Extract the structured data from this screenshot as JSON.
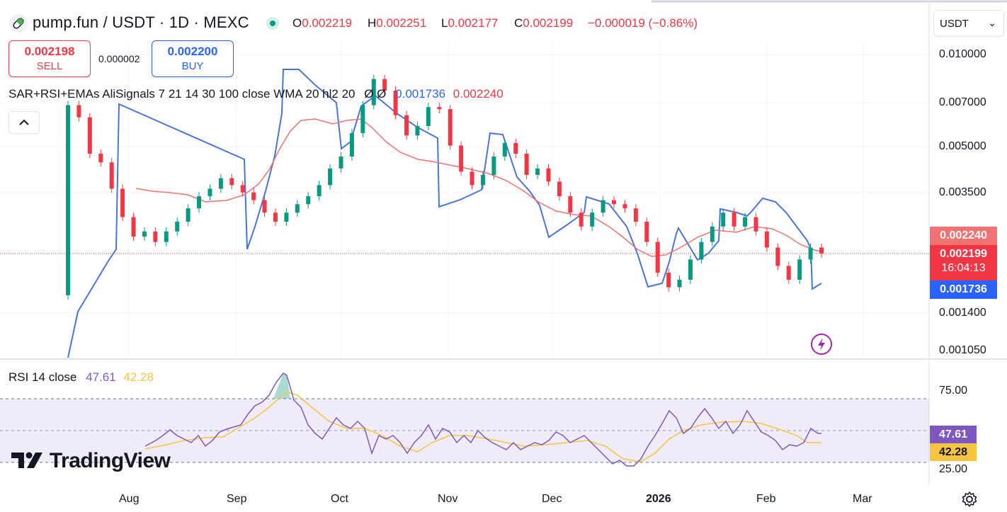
{
  "header": {
    "symbol": "pump.fun / USDT · 1D · MEXC",
    "ohlc": [
      {
        "key": "O",
        "value": "0.002219"
      },
      {
        "key": "H",
        "value": "0.002251"
      },
      {
        "key": "L",
        "value": "0.002177"
      },
      {
        "key": "C",
        "value": "0.002199"
      }
    ],
    "change": "−0.000019 (−0.86%)",
    "currency": "USDT"
  },
  "trade": {
    "sell_price": "0.002198",
    "sell_label": "SELL",
    "spread": "0.000002",
    "buy_price": "0.002200",
    "buy_label": "BUY"
  },
  "indicator": {
    "title": "SAR+RSI+EMAs AliSignals 7 21 14 30 100 close WMA 20 hl2 20",
    "flags": "Ø Ø",
    "value1": "0.001736",
    "value2": "0.002240"
  },
  "price_axis": {
    "ticks": [
      "0.010000",
      "0.007000",
      "0.005000",
      "0.003500",
      "0.001400",
      "0.001050"
    ],
    "labels": {
      "ema": "0.002240",
      "last_price": "0.002199",
      "countdown": "16:04:13",
      "sar": "0.001736"
    }
  },
  "rsi": {
    "title": "RSI 14 close",
    "value": "47.61",
    "ma_value": "42.28",
    "ticks": [
      "75.00",
      "25.00"
    ]
  },
  "time_axis": {
    "ticks": [
      "Aug",
      "Sep",
      "Oct",
      "Nov",
      "Dec",
      "2026",
      "Feb",
      "Mar"
    ]
  },
  "branding": "TradingView",
  "colors": {
    "up": "#089981",
    "down": "#f23645",
    "sar": "#4a74d9",
    "ema": "#f07272",
    "rsi": "#7e57c2",
    "rsi_ma": "#f5c542"
  },
  "chart_data": {
    "type": "candlestick",
    "series": [
      {
        "name": "pump.fun / USDT",
        "values": [
          [
            0.0016,
            0.0068
          ],
          [
            0.0068,
            0.0062
          ],
          [
            0.0062,
            0.0047
          ],
          [
            0.0047,
            0.0044
          ],
          [
            0.0044,
            0.0036
          ],
          [
            0.0036,
            0.0029
          ],
          [
            0.0029,
            0.0025
          ],
          [
            0.0025,
            0.0026
          ],
          [
            0.0026,
            0.0024
          ],
          [
            0.0024,
            0.0026
          ],
          [
            0.0026,
            0.0028
          ],
          [
            0.0028,
            0.0031
          ],
          [
            0.0031,
            0.0034
          ],
          [
            0.0034,
            0.0036
          ],
          [
            0.0036,
            0.0039
          ],
          [
            0.0039,
            0.0037
          ],
          [
            0.0037,
            0.0035
          ],
          [
            0.0035,
            0.0033
          ],
          [
            0.0033,
            0.003
          ],
          [
            0.003,
            0.0028
          ],
          [
            0.0028,
            0.003
          ],
          [
            0.003,
            0.0032
          ],
          [
            0.0032,
            0.0034
          ],
          [
            0.0034,
            0.0037
          ],
          [
            0.0037,
            0.0042
          ],
          [
            0.0042,
            0.0046
          ],
          [
            0.0046,
            0.0055
          ],
          [
            0.0055,
            0.0068
          ],
          [
            0.0068,
            0.0083
          ],
          [
            0.0083,
            0.0076
          ],
          [
            0.0076,
            0.0063
          ],
          [
            0.0063,
            0.0054
          ],
          [
            0.0054,
            0.0058
          ],
          [
            0.0058,
            0.0067
          ],
          [
            0.0067,
            0.0066
          ],
          [
            0.0066,
            0.005
          ],
          [
            0.005,
            0.0041
          ],
          [
            0.0041,
            0.0037
          ],
          [
            0.0037,
            0.004
          ],
          [
            0.004,
            0.0046
          ],
          [
            0.0046,
            0.0051
          ],
          [
            0.0051,
            0.0047
          ],
          [
            0.0047,
            0.004
          ],
          [
            0.004,
            0.0042
          ],
          [
            0.0042,
            0.0038
          ],
          [
            0.0038,
            0.0034
          ],
          [
            0.0034,
            0.003
          ],
          [
            0.003,
            0.0027
          ],
          [
            0.0027,
            0.003
          ],
          [
            0.003,
            0.0033
          ],
          [
            0.0033,
            0.0032
          ],
          [
            0.0032,
            0.0031
          ],
          [
            0.0031,
            0.0028
          ],
          [
            0.0028,
            0.0024
          ],
          [
            0.0024,
            0.0019
          ],
          [
            0.0019,
            0.0017
          ],
          [
            0.0017,
            0.0018
          ],
          [
            0.0018,
            0.0021
          ],
          [
            0.0021,
            0.0024
          ],
          [
            0.0024,
            0.0027
          ],
          [
            0.0027,
            0.003
          ],
          [
            0.003,
            0.0027
          ],
          [
            0.0027,
            0.0029
          ],
          [
            0.0029,
            0.0026
          ],
          [
            0.0026,
            0.0023
          ],
          [
            0.0023,
            0.002
          ],
          [
            0.002,
            0.0018
          ],
          [
            0.0018,
            0.0021
          ],
          [
            0.0021,
            0.0023
          ],
          [
            0.0023,
            0.0022
          ]
        ]
      }
    ],
    "overlays": [
      "Parabolic SAR",
      "EMA"
    ],
    "subplot": {
      "name": "RSI 14",
      "value": 47.61,
      "ma": 42.28,
      "bands": [
        70,
        30
      ]
    }
  }
}
